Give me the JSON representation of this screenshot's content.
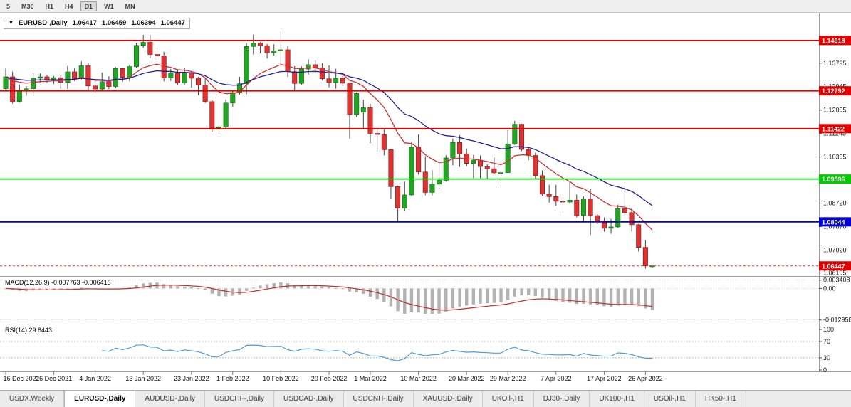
{
  "toolbar": {
    "timeframes": [
      "5",
      "M30",
      "H1",
      "H4",
      "D1",
      "W1",
      "MN"
    ],
    "active_timeframe": "D1"
  },
  "header": {
    "collapse_icon": "▼",
    "symbol": "EURUSD-,Daily",
    "open": "1.06417",
    "high": "1.06459",
    "low": "1.06394",
    "close": "1.06447"
  },
  "chart_data": {
    "type": "candlestick",
    "symbol": "EURUSD-",
    "timeframe": "Daily",
    "y_range": [
      1.0608,
      1.1562
    ],
    "price_axis_ticks": [
      "1.13795",
      "1.12945",
      "1.12095",
      "1.11245",
      "1.10395",
      "1.09545",
      "1.08720",
      "1.07870",
      "1.07020",
      "1.06195"
    ],
    "levels": [
      {
        "price": 1.14618,
        "label": "1.14618",
        "color": "#e00000"
      },
      {
        "price": 1.12792,
        "label": "1.12792",
        "color": "#e00000"
      },
      {
        "price": 1.11422,
        "label": "1.11422",
        "color": "#e00000"
      },
      {
        "price": 1.09596,
        "label": "1.09596",
        "color": "#00cc00"
      },
      {
        "price": 1.08044,
        "label": "1.08044",
        "color": "#0000cc"
      }
    ],
    "bid": {
      "price": 1.06447,
      "label": "1.06447",
      "color": "#e00000"
    },
    "colors": {
      "bull": "#22a522",
      "bear": "#dd3333",
      "wick": "#444444"
    },
    "moving_averages": [
      {
        "name": "fast-ma",
        "estimated_period": 12,
        "color": "#cc3333"
      },
      {
        "name": "slow-ma",
        "estimated_period": 26,
        "color": "#202090"
      }
    ],
    "x_labels": [
      {
        "text": "16 Dec 2021",
        "index": 0
      },
      {
        "text": "26 Dec 2021",
        "index": 7
      },
      {
        "text": "4 Jan 2022",
        "index": 13
      },
      {
        "text": "13 Jan 2022",
        "index": 20
      },
      {
        "text": "23 Jan 2022",
        "index": 27
      },
      {
        "text": "1 Feb 2022",
        "index": 33
      },
      {
        "text": "10 Feb 2022",
        "index": 40
      },
      {
        "text": "20 Feb 2022",
        "index": 47
      },
      {
        "text": "1 Mar 2022",
        "index": 53
      },
      {
        "text": "10 Mar 2022",
        "index": 60
      },
      {
        "text": "20 Mar 2022",
        "index": 67
      },
      {
        "text": "29 Mar 2022",
        "index": 73
      },
      {
        "text": "7 Apr 2022",
        "index": 80
      },
      {
        "text": "17 Apr 2022",
        "index": 87
      },
      {
        "text": "26 Apr 2022",
        "index": 93
      }
    ],
    "candles": [
      [
        1.1287,
        1.136,
        1.128,
        1.133
      ],
      [
        1.133,
        1.1349,
        1.1233,
        1.124
      ],
      [
        1.124,
        1.1302,
        1.1236,
        1.128
      ],
      [
        1.128,
        1.1296,
        1.1262,
        1.1287
      ],
      [
        1.1287,
        1.1342,
        1.1261,
        1.1325
      ],
      [
        1.1325,
        1.1343,
        1.1308,
        1.133
      ],
      [
        1.133,
        1.1338,
        1.1308,
        1.1318
      ],
      [
        1.1318,
        1.1333,
        1.1304,
        1.1327
      ],
      [
        1.1327,
        1.1335,
        1.1287,
        1.131
      ],
      [
        1.131,
        1.1369,
        1.1286,
        1.1348
      ],
      [
        1.1348,
        1.136,
        1.1315,
        1.1324
      ],
      [
        1.1324,
        1.1386,
        1.1321,
        1.137
      ],
      [
        1.137,
        1.138,
        1.1279,
        1.1297
      ],
      [
        1.1297,
        1.1322,
        1.1272,
        1.1286
      ],
      [
        1.1286,
        1.1346,
        1.1278,
        1.1312
      ],
      [
        1.1312,
        1.1332,
        1.1285,
        1.1295
      ],
      [
        1.1295,
        1.1365,
        1.1289,
        1.136
      ],
      [
        1.136,
        1.1362,
        1.1313,
        1.1328
      ],
      [
        1.1328,
        1.1374,
        1.1314,
        1.1367
      ],
      [
        1.1367,
        1.1453,
        1.1361,
        1.1444
      ],
      [
        1.1444,
        1.1482,
        1.1435,
        1.1455
      ],
      [
        1.1455,
        1.1483,
        1.1398,
        1.1411
      ],
      [
        1.1411,
        1.1436,
        1.1392,
        1.1406
      ],
      [
        1.1406,
        1.1421,
        1.1314,
        1.1326
      ],
      [
        1.1326,
        1.1359,
        1.1315,
        1.1343
      ],
      [
        1.1343,
        1.1357,
        1.1301,
        1.1308
      ],
      [
        1.1308,
        1.1361,
        1.13,
        1.1344
      ],
      [
        1.1344,
        1.1349,
        1.1291,
        1.1325
      ],
      [
        1.1325,
        1.133,
        1.1264,
        1.13
      ],
      [
        1.13,
        1.1325,
        1.1235,
        1.124
      ],
      [
        1.124,
        1.1245,
        1.1131,
        1.1145
      ],
      [
        1.1145,
        1.1175,
        1.1121,
        1.1149
      ],
      [
        1.1149,
        1.1248,
        1.1141,
        1.1235
      ],
      [
        1.1235,
        1.1279,
        1.1222,
        1.1273
      ],
      [
        1.1273,
        1.133,
        1.1266,
        1.1305
      ],
      [
        1.1305,
        1.1452,
        1.1267,
        1.144
      ],
      [
        1.144,
        1.1483,
        1.1411,
        1.1452
      ],
      [
        1.1452,
        1.1456,
        1.1415,
        1.1443
      ],
      [
        1.1443,
        1.1449,
        1.1396,
        1.1417
      ],
      [
        1.1417,
        1.1448,
        1.1407,
        1.1424
      ],
      [
        1.1424,
        1.1494,
        1.1375,
        1.1428
      ],
      [
        1.1428,
        1.1442,
        1.1329,
        1.1349
      ],
      [
        1.1349,
        1.1369,
        1.1278,
        1.1306
      ],
      [
        1.1306,
        1.1368,
        1.1301,
        1.1358
      ],
      [
        1.1358,
        1.1394,
        1.1337,
        1.1374
      ],
      [
        1.1374,
        1.139,
        1.1346,
        1.1362
      ],
      [
        1.1362,
        1.1379,
        1.1317,
        1.1323
      ],
      [
        1.1323,
        1.1371,
        1.1292,
        1.1309
      ],
      [
        1.1309,
        1.1359,
        1.1287,
        1.1325
      ],
      [
        1.1325,
        1.1343,
        1.1297,
        1.1307
      ],
      [
        1.1307,
        1.131,
        1.1106,
        1.1193
      ],
      [
        1.1193,
        1.1274,
        1.1184,
        1.127
      ],
      [
        1.1202,
        1.1247,
        1.1144,
        1.1218
      ],
      [
        1.1218,
        1.1232,
        1.109,
        1.1125
      ],
      [
        1.1125,
        1.1143,
        1.1058,
        1.1121
      ],
      [
        1.1121,
        1.1139,
        1.1045,
        1.1066
      ],
      [
        1.1066,
        1.1069,
        1.0886,
        1.0932
      ],
      [
        1.0932,
        1.0935,
        1.0806,
        1.0854
      ],
      [
        1.0854,
        1.095,
        1.0845,
        1.0902
      ],
      [
        1.0902,
        1.1095,
        1.0899,
        1.1075
      ],
      [
        1.1075,
        1.1121,
        1.0976,
        1.0985
      ],
      [
        1.0985,
        1.1043,
        1.0901,
        1.0911
      ],
      [
        1.0911,
        1.0991,
        1.09,
        1.0941
      ],
      [
        1.0941,
        1.102,
        1.0926,
        1.0955
      ],
      [
        1.0955,
        1.1046,
        1.095,
        1.1036
      ],
      [
        1.1036,
        1.1106,
        1.1009,
        1.1092
      ],
      [
        1.1092,
        1.1119,
        1.1003,
        1.1051
      ],
      [
        1.1051,
        1.107,
        1.1005,
        1.1016
      ],
      [
        1.1016,
        1.1047,
        1.0963,
        1.1028
      ],
      [
        1.1028,
        1.1045,
        1.0963,
        1.1005
      ],
      [
        1.1005,
        1.1014,
        1.096,
        1.0997
      ],
      [
        1.0997,
        1.1038,
        1.0979,
        1.0982
      ],
      [
        1.0982,
        1.0999,
        1.0944,
        1.0983
      ],
      [
        1.0983,
        1.1137,
        1.0981,
        1.1087
      ],
      [
        1.1087,
        1.1171,
        1.1083,
        1.1158
      ],
      [
        1.1158,
        1.116,
        1.1061,
        1.1067
      ],
      [
        1.1067,
        1.1077,
        1.1028,
        1.1045
      ],
      [
        1.1045,
        1.1055,
        1.0961,
        1.0972
      ],
      [
        1.0972,
        1.0991,
        1.0899,
        1.0905
      ],
      [
        1.0905,
        1.0939,
        1.0874,
        1.0896
      ],
      [
        1.0896,
        1.0939,
        1.0863,
        1.0879
      ],
      [
        1.0879,
        1.0894,
        1.0836,
        1.0876
      ],
      [
        1.0876,
        1.095,
        1.0872,
        1.0883
      ],
      [
        1.0883,
        1.0904,
        1.0821,
        1.0827
      ],
      [
        1.0827,
        1.0896,
        1.0808,
        1.0887
      ],
      [
        1.0887,
        1.0923,
        1.0757,
        1.0827
      ],
      [
        1.0827,
        1.0832,
        1.0796,
        1.0808
      ],
      [
        1.0808,
        1.0821,
        1.0769,
        1.0781
      ],
      [
        1.0781,
        1.0815,
        1.0761,
        1.0786
      ],
      [
        1.0786,
        1.0867,
        1.0783,
        1.0852
      ],
      [
        1.0852,
        1.0936,
        1.0824,
        1.0838
      ],
      [
        1.0838,
        1.0852,
        1.077,
        1.0794
      ],
      [
        1.0794,
        1.0797,
        1.0697,
        1.0712
      ],
      [
        1.0712,
        1.0738,
        1.0635,
        1.0645
      ],
      [
        1.06417,
        1.06459,
        1.06394,
        1.06447
      ]
    ],
    "indicators": {
      "macd": {
        "label": "MACD(12,26,9) -0.007763 -0.006418",
        "params": [
          12,
          26,
          9
        ],
        "value": "-0.007763",
        "signal_value": "-0.006418",
        "axis_ticks": [
          "0.003408",
          "0.00",
          "-0.012958"
        ],
        "histogram_color": "#b2b2b2",
        "signal_color": "#c03030"
      },
      "rsi": {
        "label": "RSI(14) 29.8443",
        "period": 14,
        "value": 29.8443,
        "axis_ticks": [
          "100",
          "70",
          "30",
          "0"
        ],
        "levels": [
          70,
          30
        ],
        "line_color": "#539bd3"
      }
    }
  },
  "tabs": {
    "items": [
      {
        "label": "USDX,Weekly",
        "active": false
      },
      {
        "label": "EURUSD-,Daily",
        "active": true
      },
      {
        "label": "AUDUSD-,Daily",
        "active": false
      },
      {
        "label": "USDCHF-,Daily",
        "active": false
      },
      {
        "label": "USDCAD-,Daily",
        "active": false
      },
      {
        "label": "USDCNH-,Daily",
        "active": false
      },
      {
        "label": "XAUUSD-,Daily",
        "active": false
      },
      {
        "label": "UKOil-,H1",
        "active": false
      },
      {
        "label": "DJ30-,Daily",
        "active": false
      },
      {
        "label": "UK100-,H1",
        "active": false
      },
      {
        "label": "USOil-,H1",
        "active": false
      },
      {
        "label": "HK50-,H1",
        "active": false
      }
    ]
  }
}
